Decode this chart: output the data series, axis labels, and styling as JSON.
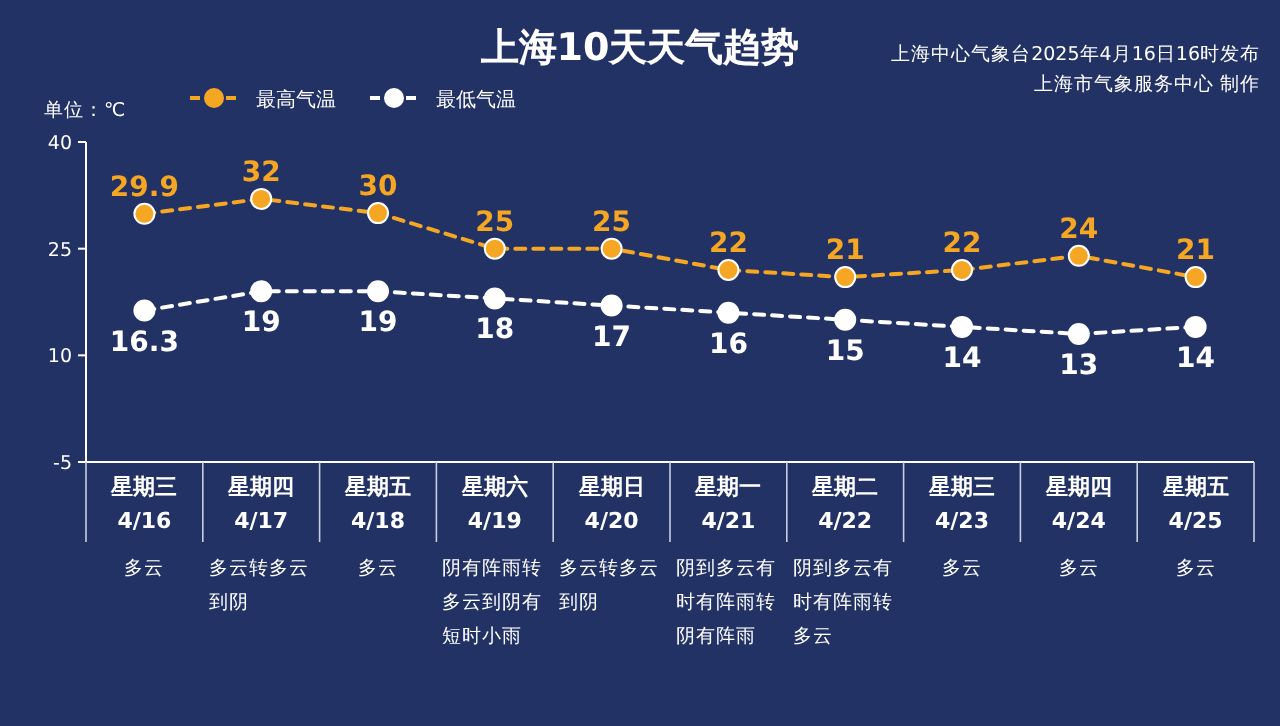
{
  "chart_data": {
    "type": "line",
    "title": "上海10天天气趋势",
    "subtitle": "上海中心气象台2025年4月16日16时发布",
    "ylabel": "单位：℃",
    "categories": [
      "星期三 4/16",
      "星期四 4/17",
      "星期五 4/18",
      "星期六 4/19",
      "星期日 4/20",
      "星期一 4/21",
      "星期二 4/22",
      "星期三 4/23",
      "星期四 4/24",
      "星期五 4/25"
    ],
    "series": [
      {
        "name": "最高气温",
        "color": "#f5a623",
        "values": [
          29.9,
          32,
          30,
          25,
          25,
          22,
          21,
          22,
          24,
          21
        ]
      },
      {
        "name": "最低气温",
        "color": "#ffffff",
        "values": [
          16.3,
          19,
          19,
          18,
          17,
          16,
          15,
          14,
          13,
          14
        ]
      }
    ],
    "ylim": [
      -5,
      40
    ],
    "yticks": [
      -5,
      10,
      25,
      40
    ],
    "data_labels": true,
    "legend": "top left",
    "marker": "circle",
    "line_style": "dashed",
    "grid": false,
    "annotations": [
      "多云",
      "多云转多云到阴",
      "多云",
      "阴有阵雨转多云到阴有短时小雨",
      "多云转多云到阴",
      "阴到多云有时有阵雨转阴有阵雨",
      "阴到多云有时有阵雨转多云",
      "多云",
      "多云",
      "多云",
      "上海市气象服务中心 制作"
    ]
  }
}
